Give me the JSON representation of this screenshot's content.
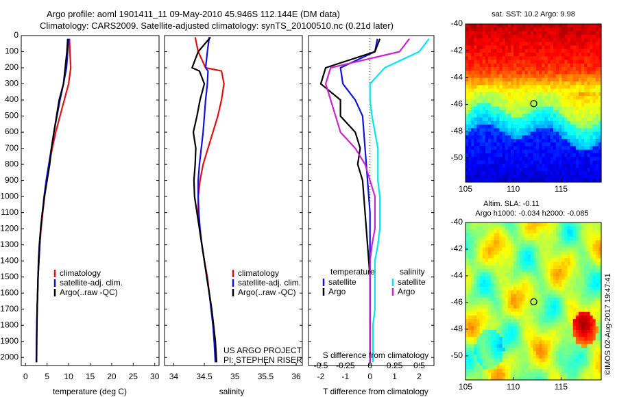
{
  "header": {
    "title_line1": "Argo profile: aoml 1901411_11 09-May-2010 45.946S 112.144E (DM data)",
    "title_line2": "Climatology: CARS2009. Satellite-adjusted climatology: synTS_20100510.nc (0.21d later)"
  },
  "credits": {
    "project": "US ARGO PROJECT",
    "pi": "PI: STEPHEN RISER",
    "stamp": "©IMOS 02-Aug-2017 19:47:41"
  },
  "colors": {
    "climatology": "#e01010",
    "satellite": "#1010dd",
    "argo": "#000000",
    "sal_satellite": "#00e5f0",
    "sal_argo": "#cc22cc"
  },
  "chart_data": [
    {
      "id": "temperature",
      "type": "line",
      "xlabel": "temperature (deg C)",
      "ylabel": "",
      "xlim": [
        -1,
        31
      ],
      "ylim": [
        2050,
        0
      ],
      "xticks": [
        0,
        5,
        10,
        15,
        20,
        25,
        30
      ],
      "yticks": [
        0,
        100,
        200,
        300,
        400,
        500,
        600,
        700,
        800,
        900,
        1000,
        1100,
        1200,
        1300,
        1400,
        1500,
        1600,
        1700,
        1800,
        1900,
        2000
      ],
      "legend": [
        "climatology",
        "satellite-adj. clim.",
        "Argo(..raw -QC)"
      ],
      "legend_position": "bottom-right",
      "series": [
        {
          "name": "climatology",
          "color": "climatology",
          "x": [
            10.2,
            10.3,
            10.5,
            10.0,
            9.0,
            8.0,
            7.0,
            6.2,
            5.5,
            4.9,
            4.4,
            4.0,
            3.6,
            3.3,
            3.1,
            2.9,
            2.8,
            2.7,
            2.6,
            2.55,
            2.5
          ],
          "y": [
            20,
            100,
            200,
            300,
            400,
            500,
            600,
            700,
            800,
            900,
            1000,
            1100,
            1200,
            1300,
            1400,
            1500,
            1600,
            1700,
            1800,
            1900,
            2030
          ]
        },
        {
          "name": "satellite-adj. clim.",
          "color": "satellite",
          "x": [
            10.0,
            9.8,
            9.5,
            8.8,
            8.0,
            7.3,
            6.6,
            6.0,
            5.4,
            4.8,
            4.3,
            3.9,
            3.5,
            3.3,
            3.1,
            2.9,
            2.8,
            2.7,
            2.6,
            2.55,
            2.5
          ],
          "y": [
            20,
            100,
            200,
            300,
            400,
            500,
            600,
            700,
            800,
            900,
            1000,
            1100,
            1200,
            1300,
            1400,
            1500,
            1600,
            1700,
            1800,
            1900,
            2030
          ]
        },
        {
          "name": "Argo(..raw -QC)",
          "color": "argo",
          "x": [
            9.8,
            9.6,
            9.2,
            8.8,
            7.8,
            7.2,
            6.6,
            6.0,
            5.6,
            5.0,
            4.4,
            3.9,
            3.5,
            3.2,
            3.0,
            2.9,
            2.8,
            2.7,
            2.65,
            2.6,
            2.55
          ],
          "y": [
            20,
            100,
            200,
            300,
            400,
            500,
            600,
            700,
            800,
            900,
            1000,
            1100,
            1200,
            1300,
            1400,
            1500,
            1600,
            1700,
            1800,
            1900,
            2030
          ]
        }
      ]
    },
    {
      "id": "salinity",
      "type": "line",
      "xlabel": "salinity",
      "ylabel": "",
      "xlim": [
        33.85,
        36.1
      ],
      "ylim": [
        2050,
        0
      ],
      "xticks": [
        34,
        34.5,
        35,
        35.5,
        36
      ],
      "legend": [
        "climatology",
        "satellite-adj. clim.",
        "Argo(..raw -QC)"
      ],
      "legend_position": "bottom-right",
      "series": [
        {
          "name": "climatology",
          "color": "climatology",
          "x": [
            34.35,
            34.4,
            34.52,
            34.78,
            34.82,
            34.78,
            34.72,
            34.64,
            34.56,
            34.48,
            34.43,
            34.4,
            34.4,
            34.42,
            34.46,
            34.5,
            34.55,
            34.58,
            34.62,
            34.65,
            34.68,
            34.7
          ],
          "y": [
            10,
            100,
            200,
            220,
            300,
            400,
            500,
            600,
            700,
            800,
            900,
            1000,
            1100,
            1200,
            1300,
            1400,
            1500,
            1600,
            1700,
            1800,
            1900,
            2030
          ]
        },
        {
          "name": "satellite-adj. clim.",
          "color": "satellite",
          "x": [
            34.58,
            34.55,
            34.52,
            34.56,
            34.55,
            34.52,
            34.5,
            34.48,
            34.45,
            34.42,
            34.4,
            34.4,
            34.41,
            34.43,
            34.46,
            34.5,
            34.54,
            34.58,
            34.61,
            34.64,
            34.66,
            34.68
          ],
          "y": [
            10,
            100,
            200,
            220,
            300,
            400,
            500,
            600,
            700,
            800,
            900,
            1000,
            1100,
            1200,
            1300,
            1400,
            1500,
            1600,
            1700,
            1800,
            1900,
            2030
          ]
        },
        {
          "name": "Argo(..raw -QC)",
          "color": "argo",
          "x": [
            34.6,
            34.4,
            34.3,
            34.42,
            34.5,
            34.43,
            34.38,
            34.32,
            34.36,
            34.35,
            34.33,
            34.34,
            34.38,
            34.42,
            34.46,
            34.5,
            34.54,
            34.58,
            34.62,
            34.65,
            34.68,
            34.7
          ],
          "y": [
            10,
            100,
            200,
            220,
            300,
            400,
            500,
            600,
            700,
            800,
            900,
            1000,
            1100,
            1200,
            1300,
            1400,
            1500,
            1600,
            1700,
            1800,
            1900,
            2030
          ]
        }
      ]
    },
    {
      "id": "difference",
      "type": "line",
      "xlabel": "T difference from climatology",
      "xlabel_top": "S difference from climatology",
      "xlim": [
        -2.5,
        2.6
      ],
      "ylim": [
        2050,
        0
      ],
      "xticks": [
        -2,
        -1,
        0,
        1,
        2
      ],
      "sticks": [
        -0.5,
        -0.25,
        0,
        0.25,
        0.5
      ],
      "s_scale": 4,
      "legend_headers": [
        "temperature",
        "salinity"
      ],
      "legend": [
        "satellite",
        "Argo",
        "satellite",
        "Argo"
      ],
      "legend_position": "bottom",
      "series": [
        {
          "name": "satellite",
          "group": "temperature",
          "color": "satellite",
          "x": [
            0.3,
            0.2,
            -1.2,
            -1.1,
            -0.6,
            -0.3,
            -0.25,
            -0.2,
            -0.15,
            -0.1,
            -0.05,
            0,
            0,
            0,
            0,
            0,
            0,
            0,
            0,
            0,
            0
          ],
          "y": [
            20,
            100,
            200,
            300,
            400,
            500,
            600,
            700,
            800,
            900,
            1000,
            1100,
            1200,
            1300,
            1400,
            1500,
            1600,
            1700,
            1800,
            1900,
            2030
          ]
        },
        {
          "name": "Argo",
          "group": "temperature",
          "color": "argo",
          "x": [
            0.4,
            0.2,
            -1.8,
            -2.0,
            -1.2,
            -1.2,
            -0.6,
            -0.4,
            -0.5,
            -0.3,
            -0.25,
            -0.2,
            -0.15,
            -0.1,
            -0.05,
            0,
            0,
            0,
            0,
            0,
            0
          ],
          "y": [
            20,
            100,
            200,
            300,
            400,
            500,
            600,
            700,
            800,
            900,
            1000,
            1100,
            1200,
            1300,
            1400,
            1500,
            1600,
            1700,
            1800,
            1900,
            2030
          ]
        },
        {
          "name": "satellite",
          "group": "salinity",
          "color": "sal_satellite",
          "x": [
            0.6,
            0.5,
            0.15,
            0.0,
            0.0,
            0.02,
            0.05,
            0.08,
            0.08,
            0.08,
            0.1,
            0.1,
            0.1,
            0.08,
            0.05,
            0.05,
            0.05,
            0.05,
            0.03,
            0.03,
            0.03
          ],
          "y": [
            20,
            100,
            200,
            300,
            400,
            500,
            600,
            700,
            800,
            900,
            1000,
            1100,
            1200,
            1300,
            1400,
            1500,
            1600,
            1700,
            1800,
            1900,
            2030
          ]
        },
        {
          "name": "Argo",
          "group": "salinity",
          "color": "sal_argo",
          "x": [
            0.4,
            0.3,
            -0.4,
            -0.45,
            -0.4,
            -0.35,
            -0.3,
            -0.15,
            -0.05,
            0.0,
            0.05,
            0.05,
            0.05,
            0.02,
            0.0,
            0.0,
            0.0,
            0.0,
            0.0,
            0.0,
            0.0
          ],
          "y": [
            20,
            100,
            200,
            300,
            400,
            500,
            600,
            700,
            800,
            900,
            1000,
            1100,
            1200,
            1300,
            1400,
            1500,
            1600,
            1700,
            1800,
            1900,
            2030
          ]
        }
      ]
    },
    {
      "id": "sst_map",
      "type": "heatmap",
      "title": "sat. SST: 10.2 Argo: 9.98",
      "xlim": [
        105,
        119.2
      ],
      "ylim": [
        -51.8,
        -40
      ],
      "xticks": [
        105,
        110,
        115
      ],
      "yticks": [
        -40,
        -42,
        -44,
        -46,
        -48,
        -50
      ],
      "marker": {
        "lon": 112.144,
        "lat": -45.946
      },
      "colormap": "jet",
      "field": "sst_front"
    },
    {
      "id": "sla_map",
      "type": "heatmap",
      "title": "Altim. SLA: -0.11",
      "subtitle": "Argo h1000: -0.034 h2000: -0.085",
      "xlim": [
        105,
        119.2
      ],
      "ylim": [
        -51.8,
        -40
      ],
      "xticks": [
        105,
        110,
        115
      ],
      "yticks": [
        -40,
        -42,
        -44,
        -46,
        -48,
        -50
      ],
      "marker": {
        "lon": 112.144,
        "lat": -45.946
      },
      "colormap": "jet",
      "field": "sla_eddies"
    }
  ]
}
